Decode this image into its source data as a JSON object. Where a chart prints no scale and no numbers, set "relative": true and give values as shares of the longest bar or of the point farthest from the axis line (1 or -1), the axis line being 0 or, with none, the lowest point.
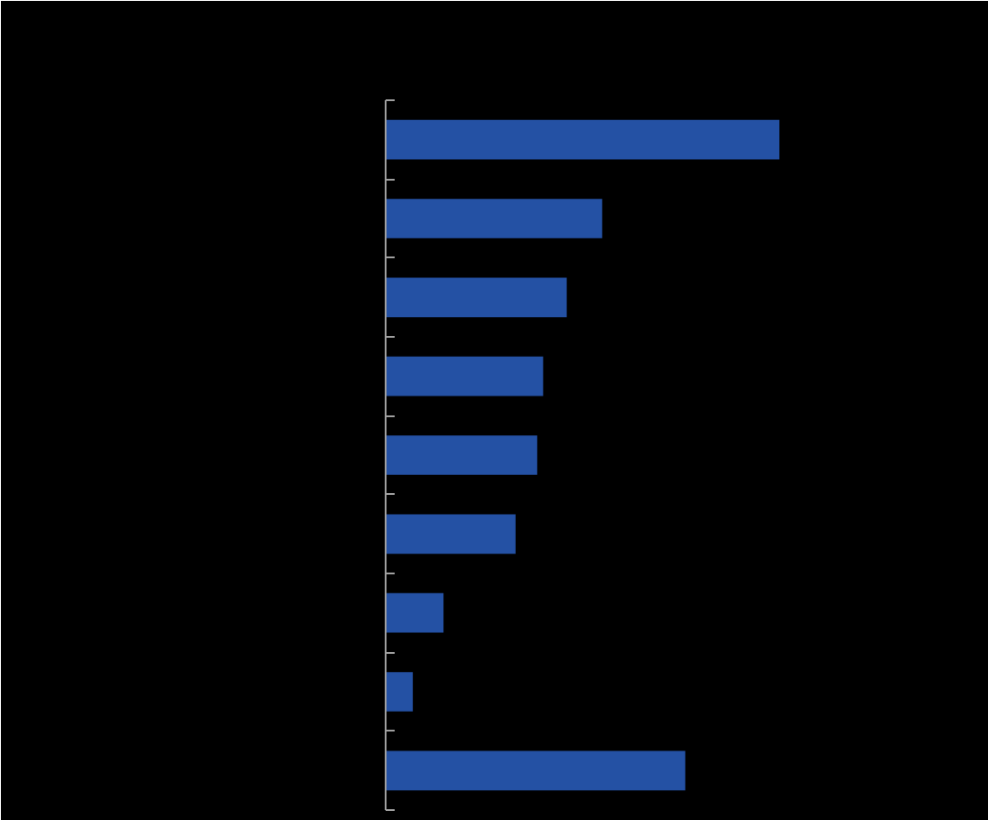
{
  "chart_data": {
    "type": "bar",
    "orientation": "horizontal",
    "relative": true,
    "categories": [
      null,
      null,
      null,
      null,
      null,
      null,
      null,
      null,
      null
    ],
    "values": [
      1,
      0.55,
      0.46,
      0.4,
      0.385,
      0.33,
      0.147,
      0.069,
      0.761
    ],
    "color": "#2451a4"
  }
}
